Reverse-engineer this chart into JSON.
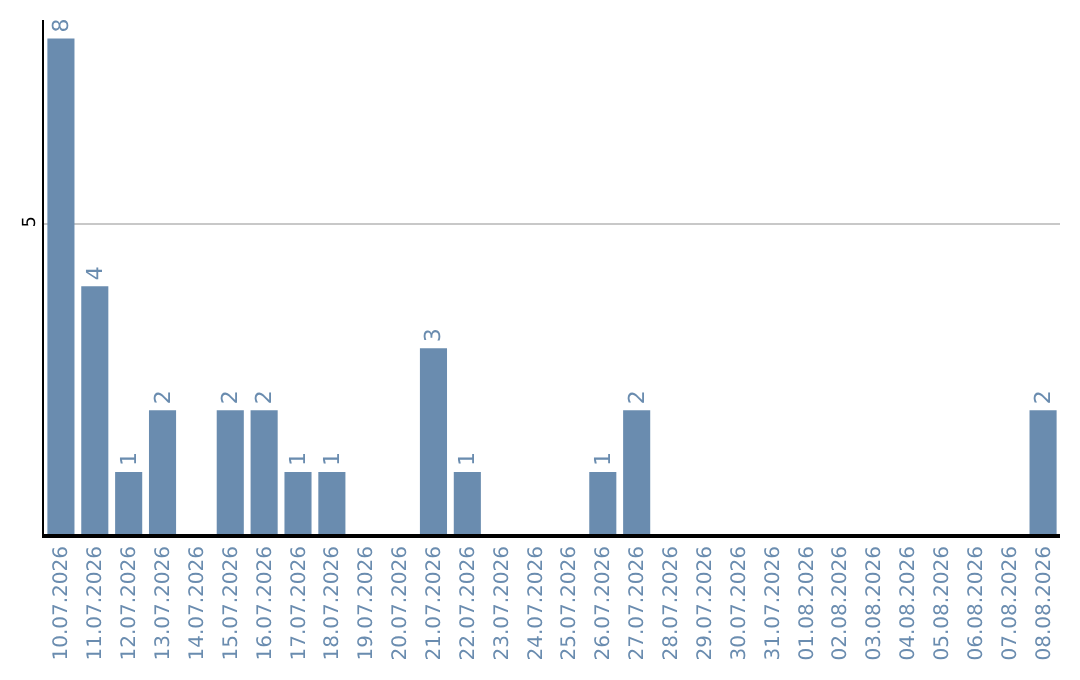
{
  "chart_data": {
    "type": "bar",
    "categories": [
      "10.07.2026",
      "11.07.2026",
      "12.07.2026",
      "13.07.2026",
      "14.07.2026",
      "15.07.2026",
      "16.07.2026",
      "17.07.2026",
      "18.07.2026",
      "19.07.2026",
      "20.07.2026",
      "21.07.2026",
      "22.07.2026",
      "23.07.2026",
      "24.07.2026",
      "25.07.2026",
      "26.07.2026",
      "27.07.2026",
      "28.07.2026",
      "29.07.2026",
      "30.07.2026",
      "31.07.2026",
      "01.08.2026",
      "02.08.2026",
      "03.08.2026",
      "04.08.2026",
      "05.08.2026",
      "06.08.2026",
      "07.08.2026",
      "08.08.2026"
    ],
    "values": [
      8,
      4,
      1,
      2,
      0,
      2,
      2,
      1,
      1,
      0,
      0,
      3,
      1,
      0,
      0,
      0,
      1,
      2,
      0,
      0,
      0,
      0,
      0,
      0,
      0,
      0,
      0,
      0,
      0,
      2
    ],
    "value_labels": [
      "8",
      "4",
      "1",
      "2",
      null,
      "2",
      "2",
      "1",
      "1",
      null,
      null,
      "3",
      "1",
      null,
      null,
      null,
      "1",
      "2",
      null,
      null,
      null,
      null,
      null,
      null,
      null,
      null,
      null,
      null,
      null,
      "2"
    ],
    "color": "#6a8caf",
    "ylim": [
      0,
      8.3
    ],
    "yticks": [
      5
    ],
    "grid": "y"
  }
}
